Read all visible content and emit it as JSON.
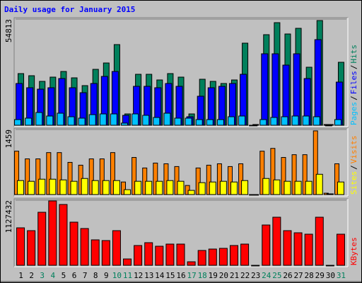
{
  "title": "Daily usage for January 2015",
  "legend_separator": "/",
  "chart_data": [
    {
      "type": "bar",
      "ylim": [
        0,
        54813
      ],
      "yticks": [
        54813
      ],
      "series": [
        {
          "name": "Pages",
          "color": "#00C0FF",
          "values": [
            2923,
            3654,
            6577,
            4750,
            6212,
            4385,
            3654,
            5481,
            5846,
            5846,
            1096,
            5846,
            5116,
            4019,
            6212,
            3654,
            3654,
            2923,
            2923,
            2923,
            4385,
            4750,
            0,
            2923,
            4019,
            4385,
            4750,
            4750,
            4385,
            365,
            2923
          ]
        },
        {
          "name": "Files",
          "color": "#0000FF",
          "values": [
            21559,
            19366,
            18635,
            19366,
            24117,
            19366,
            16809,
            21559,
            25213,
            27771,
            5116,
            20097,
            20097,
            19366,
            21559,
            20097,
            4385,
            14981,
            19366,
            20097,
            21559,
            26309,
            0,
            36906,
            36906,
            31059,
            36906,
            24117,
            44213,
            0,
            22289
          ]
        },
        {
          "name": "Hits",
          "color": "#00805C",
          "values": [
            26675,
            25578,
            22655,
            24847,
            27770,
            24482,
            20462,
            28867,
            32155,
            41656,
            5846,
            26309,
            26309,
            23386,
            26675,
            24847,
            5846,
            23751,
            22655,
            21559,
            23386,
            42387,
            365,
            46771,
            52983,
            47137,
            50060,
            29963,
            54080,
            365,
            32521
          ]
        }
      ]
    },
    {
      "type": "bar",
      "ylim": [
        0,
        1459
      ],
      "yticks": [
        1459
      ],
      "series": [
        {
          "name": "Sites",
          "color": "#FFFF00",
          "values": [
            314,
            298,
            345,
            345,
            329,
            298,
            361,
            314,
            314,
            314,
            110,
            298,
            298,
            298,
            314,
            298,
            94,
            267,
            282,
            298,
            282,
            314,
            0,
            361,
            329,
            298,
            298,
            298,
            455,
            16,
            282
          ]
        },
        {
          "name": "Visits",
          "color": "#FF8000",
          "values": [
            973,
            800,
            800,
            941,
            941,
            722,
            659,
            800,
            800,
            941,
            282,
            832,
            596,
            706,
            690,
            628,
            204,
            596,
            659,
            690,
            628,
            690,
            0,
            973,
            1035,
            832,
            894,
            894,
            1428,
            31,
            690
          ]
        }
      ]
    },
    {
      "type": "bar",
      "ylim": [
        0,
        1127432
      ],
      "yticks": [
        1127432
      ],
      "categories": [
        "1",
        "2",
        "3",
        "4",
        "5",
        "6",
        "7",
        "8",
        "9",
        "10",
        "11",
        "12",
        "13",
        "14",
        "15",
        "16",
        "17",
        "18",
        "19",
        "20",
        "21",
        "22",
        "23",
        "24",
        "25",
        "26",
        "27",
        "28",
        "29",
        "30",
        "31"
      ],
      "label_colors": [
        "#000000",
        "#000000",
        "#00805C",
        "#00805C",
        "#000000",
        "#000000",
        "#000000",
        "#000000",
        "#000000",
        "#00805C",
        "#00805C",
        "#000000",
        "#000000",
        "#000000",
        "#000000",
        "#000000",
        "#00805C",
        "#00805C",
        "#000000",
        "#000000",
        "#000000",
        "#000000",
        "#000000",
        "#00805C",
        "#00805C",
        "#000000",
        "#000000",
        "#000000",
        "#000000",
        "#000000",
        "#00805C"
      ],
      "series": [
        {
          "name": "KBytes",
          "color": "#FF0000",
          "values": [
            649500,
            600500,
            919100,
            1115200,
            1053900,
            747600,
            637300,
            441200,
            428900,
            600500,
            110300,
            343100,
            392200,
            330900,
            367700,
            367700,
            61300,
            257400,
            281900,
            294100,
            343100,
            367700,
            0,
            698500,
            833300,
            600500,
            563700,
            539200,
            833300,
            0,
            539200
          ]
        }
      ]
    }
  ]
}
